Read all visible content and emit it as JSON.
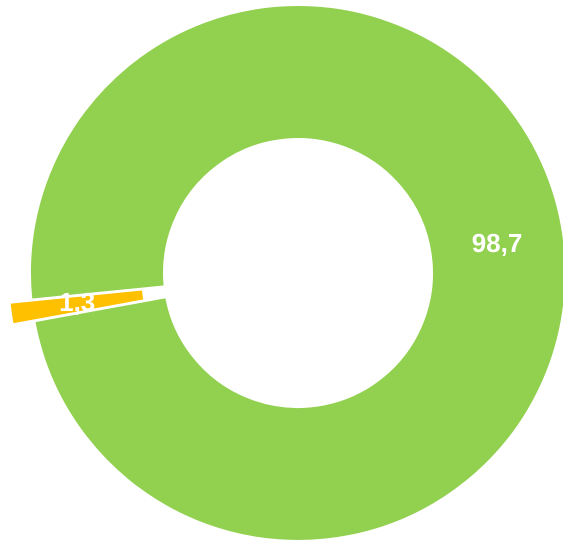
{
  "chart_data": {
    "type": "donut",
    "categories": [
      null,
      null
    ],
    "values": [
      98.7,
      1.3
    ],
    "value_labels": [
      "98,7",
      "1,3"
    ],
    "colors": [
      "#92d050",
      "#ffc000"
    ]
  }
}
